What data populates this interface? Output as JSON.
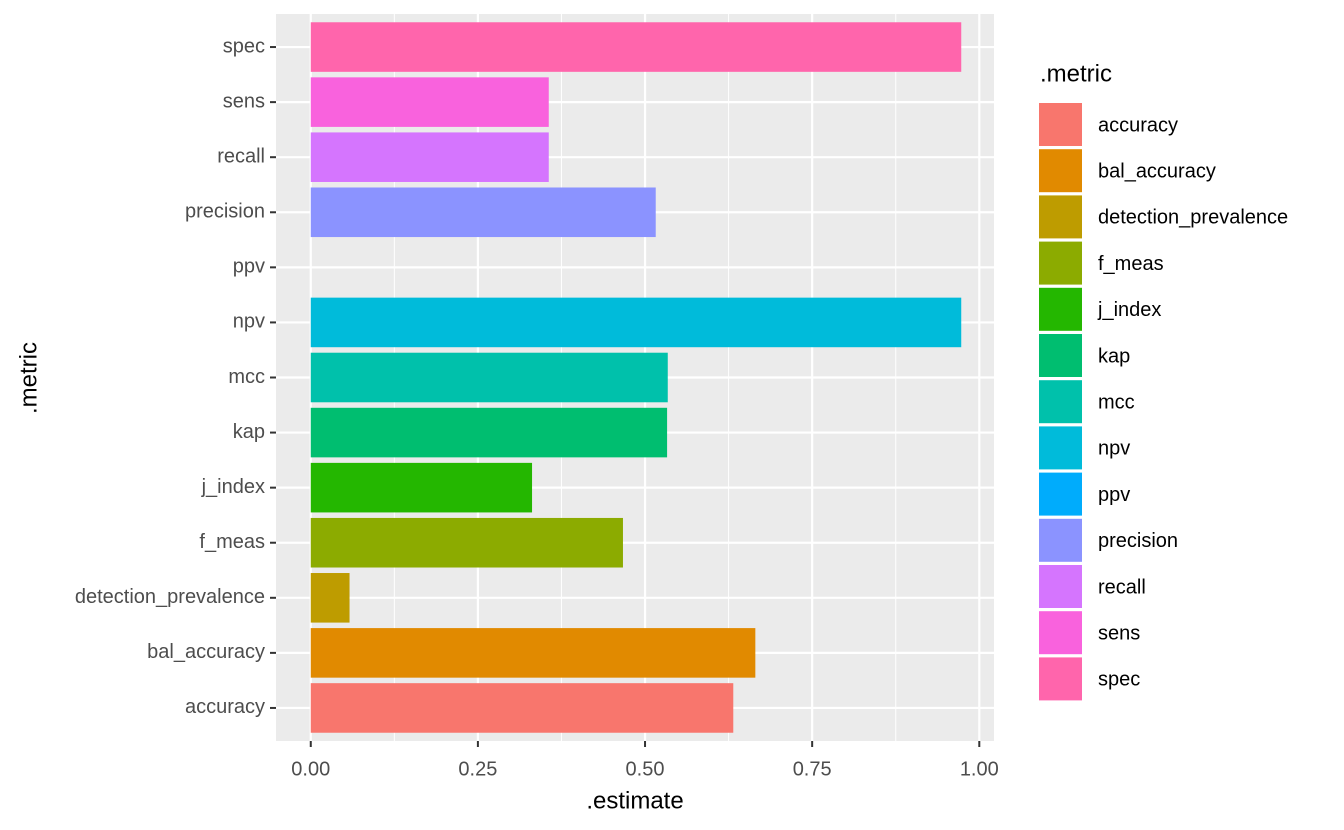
{
  "chart_data": {
    "type": "bar",
    "orientation": "horizontal",
    "categories": [
      "accuracy",
      "bal_accuracy",
      "detection_prevalence",
      "f_meas",
      "j_index",
      "kap",
      "mcc",
      "npv",
      "ppv",
      "precision",
      "recall",
      "sens",
      "spec"
    ],
    "values": [
      0.632,
      0.665,
      0.058,
      0.467,
      0.331,
      0.533,
      0.534,
      0.973,
      null,
      0.516,
      0.356,
      0.356,
      0.973
    ],
    "colors": [
      "#F8766D",
      "#E18A00",
      "#BE9C00",
      "#8CAB00",
      "#24B700",
      "#00BE70",
      "#00C1AB",
      "#00BBDA",
      "#00ACFC",
      "#8B93FF",
      "#D575FE",
      "#F962DD",
      "#FF65AC"
    ],
    "x_label": ".estimate",
    "y_label": ".metric",
    "legend_title": ".metric",
    "legend_position": "right",
    "xlim": [
      -0.052,
      1.022
    ],
    "xticks": [
      {
        "value": 0,
        "label": "0.00"
      },
      {
        "value": 0.25,
        "label": "0.25"
      },
      {
        "value": 0.5,
        "label": "0.50"
      },
      {
        "value": 0.75,
        "label": "0.75"
      },
      {
        "value": 1,
        "label": "1.00"
      }
    ],
    "x_minor_ticks": [
      0.125,
      0.375,
      0.625,
      0.875
    ],
    "grid": true
  }
}
